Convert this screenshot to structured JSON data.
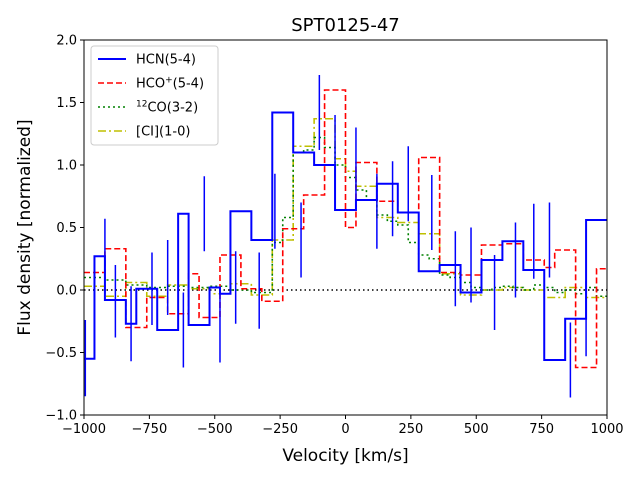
{
  "chart_data": {
    "type": "line",
    "drawstyle": "steps",
    "title": "SPT0125-47",
    "xlabel": "Velocity [km/s]",
    "ylabel": "Flux density [normalized]",
    "xlim": [
      -1000,
      1000
    ],
    "ylim": [
      -1.0,
      2.0
    ],
    "xticks": [
      -1000,
      -750,
      -500,
      -250,
      0,
      250,
      500,
      750,
      1000
    ],
    "xtick_labels": [
      "−1000",
      "−750",
      "−500",
      "−250",
      "0",
      "250",
      "500",
      "750",
      "1000"
    ],
    "yticks": [
      -1.0,
      -0.5,
      0.0,
      0.5,
      1.0,
      1.5,
      2.0
    ],
    "ytick_labels": [
      "−1.0",
      "−0.5",
      "0.0",
      "0.5",
      "1.0",
      "1.5",
      "2.0"
    ],
    "zero_line": 0,
    "grid": false,
    "legend_position": "top-left",
    "series": [
      {
        "name": "HCN(5-4)",
        "label_main": "HCN(5-4)",
        "label_sup": "",
        "label_rest": "",
        "color": "#0000ff",
        "linestyle": "solid",
        "x": [
          -1000,
          -960,
          -920,
          -880,
          -840,
          -800,
          -760,
          -720,
          -680,
          -640,
          -600,
          -560,
          -520,
          -480,
          -440,
          -400,
          -360,
          -320,
          -280,
          -240,
          -200,
          -160,
          -120,
          -80,
          -40,
          0,
          40,
          80,
          120,
          160,
          200,
          240,
          280,
          320,
          360,
          400,
          440,
          480,
          520,
          560,
          600,
          640,
          680,
          720,
          760,
          800,
          840,
          880,
          920,
          960,
          1000
        ],
        "y": [
          -0.55,
          0.27,
          -0.08,
          -0.08,
          -0.27,
          0.01,
          0.01,
          -0.32,
          -0.32,
          0.61,
          -0.28,
          -0.28,
          0.02,
          -0.03,
          0.63,
          0.63,
          0.4,
          0.4,
          1.42,
          1.42,
          1.1,
          1.1,
          1.0,
          1.0,
          0.64,
          0.64,
          0.72,
          0.72,
          0.85,
          0.85,
          0.62,
          0.62,
          0.15,
          0.15,
          0.2,
          0.2,
          -0.02,
          -0.02,
          0.24,
          0.24,
          0.39,
          0.39,
          0.16,
          0.16,
          -0.56,
          -0.56,
          -0.23,
          -0.23,
          0.56,
          0.56,
          0.56
        ],
        "errors": [
          {
            "x": -995,
            "low": -0.85,
            "high": -0.24
          },
          {
            "x": -920,
            "low": -0.02,
            "high": 0.57
          },
          {
            "x": -880,
            "low": -0.38,
            "high": 0.2
          },
          {
            "x": -820,
            "low": -0.57,
            "high": 0.03
          },
          {
            "x": -740,
            "low": -0.28,
            "high": 0.3
          },
          {
            "x": -680,
            "low": -0.2,
            "high": 0.4
          },
          {
            "x": -620,
            "low": -0.62,
            "high": -0.02
          },
          {
            "x": -540,
            "low": 0.31,
            "high": 0.91
          },
          {
            "x": -480,
            "low": -0.58,
            "high": 0.02
          },
          {
            "x": -420,
            "low": -0.27,
            "high": 0.31
          },
          {
            "x": -330,
            "low": -0.31,
            "high": 0.3
          },
          {
            "x": -270,
            "low": 0.33,
            "high": 0.93
          },
          {
            "x": -170,
            "low": 0.1,
            "high": 0.7
          },
          {
            "x": -100,
            "low": 1.12,
            "high": 1.72
          },
          {
            "x": -40,
            "low": 0.8,
            "high": 1.4
          },
          {
            "x": 40,
            "low": 0.7,
            "high": 1.3
          },
          {
            "x": 120,
            "low": 0.33,
            "high": 0.93
          },
          {
            "x": 180,
            "low": 0.43,
            "high": 1.03
          },
          {
            "x": 240,
            "low": 0.55,
            "high": 1.15
          },
          {
            "x": 330,
            "low": 0.32,
            "high": 0.92
          },
          {
            "x": 420,
            "low": -0.13,
            "high": 0.47
          },
          {
            "x": 480,
            "low": -0.1,
            "high": 0.5
          },
          {
            "x": 570,
            "low": -0.32,
            "high": 0.28
          },
          {
            "x": 650,
            "low": -0.06,
            "high": 0.54
          },
          {
            "x": 720,
            "low": 0.09,
            "high": 0.69
          },
          {
            "x": 780,
            "low": 0.1,
            "high": 0.7
          },
          {
            "x": 860,
            "low": -0.86,
            "high": -0.26
          },
          {
            "x": 920,
            "low": -0.53,
            "high": 0.07
          }
        ]
      },
      {
        "name": "HCO+(5-4)",
        "label_main": "HCO",
        "label_sup": "+",
        "label_rest": "(5-4)",
        "color": "#ff0000",
        "linestyle": "dashed",
        "x": [
          -1000,
          -960,
          -920,
          -880,
          -840,
          -800,
          -760,
          -720,
          -680,
          -640,
          -600,
          -560,
          -520,
          -480,
          -440,
          -400,
          -360,
          -320,
          -280,
          -240,
          -200,
          -160,
          -120,
          -80,
          -40,
          0,
          40,
          80,
          120,
          160,
          200,
          240,
          280,
          320,
          360,
          400,
          440,
          480,
          520,
          560,
          600,
          640,
          680,
          720,
          760,
          800,
          840,
          880,
          920,
          960,
          1000
        ],
        "y": [
          0.14,
          0.14,
          0.33,
          0.33,
          -0.3,
          -0.3,
          -0.06,
          -0.06,
          -0.19,
          -0.19,
          0.13,
          -0.22,
          -0.22,
          0.28,
          0.28,
          0.01,
          0.01,
          -0.09,
          -0.09,
          0.49,
          0.49,
          0.76,
          0.76,
          1.6,
          1.6,
          0.5,
          1.02,
          1.02,
          0.71,
          0.71,
          0.62,
          0.62,
          1.06,
          1.06,
          0.14,
          0.14,
          0.12,
          0.12,
          0.36,
          0.36,
          0.37,
          0.37,
          0.24,
          0.24,
          0.18,
          0.32,
          0.32,
          -0.62,
          -0.62,
          0.17,
          0.17
        ],
        "errors": []
      },
      {
        "name": "12CO(3-2)",
        "label_main": "",
        "label_sup": "12",
        "label_rest": "CO(3-2)",
        "color": "#008000",
        "linestyle": "dotted",
        "x": [
          -1000,
          -960,
          -920,
          -880,
          -840,
          -800,
          -760,
          -720,
          -680,
          -640,
          -600,
          -560,
          -520,
          -480,
          -440,
          -400,
          -360,
          -320,
          -280,
          -240,
          -200,
          -160,
          -120,
          -80,
          -40,
          0,
          40,
          80,
          120,
          160,
          200,
          240,
          280,
          320,
          360,
          400,
          440,
          480,
          520,
          560,
          600,
          640,
          680,
          720,
          760,
          800,
          840,
          880,
          920,
          960,
          1000
        ],
        "y": [
          0.1,
          0.1,
          0.08,
          0.08,
          0.04,
          0.04,
          0.02,
          0.02,
          0.03,
          0.03,
          0.02,
          0.02,
          0.03,
          0.03,
          0.0,
          0.0,
          -0.02,
          -0.02,
          0.38,
          0.58,
          1.1,
          1.12,
          1.22,
          1.14,
          1.0,
          0.9,
          0.8,
          0.72,
          0.6,
          0.55,
          0.52,
          0.38,
          0.28,
          0.25,
          0.12,
          0.1,
          0.06,
          0.02,
          0.0,
          0.02,
          0.03,
          0.02,
          0.0,
          0.04,
          0.02,
          -0.02,
          0.0,
          -0.03,
          0.02,
          -0.05,
          -0.05
        ],
        "errors": []
      },
      {
        "name": "[CI](1-0)",
        "label_main": "[CI](1-0)",
        "label_sup": "",
        "label_rest": "",
        "color": "#bfbf00",
        "linestyle": "dashdot",
        "x": [
          -1000,
          -960,
          -920,
          -880,
          -840,
          -800,
          -760,
          -720,
          -680,
          -640,
          -600,
          -560,
          -520,
          -480,
          -440,
          -400,
          -360,
          -320,
          -280,
          -240,
          -200,
          -160,
          -120,
          -80,
          -40,
          0,
          40,
          80,
          120,
          160,
          200,
          240,
          280,
          320,
          360,
          400,
          440,
          480,
          520,
          560,
          600,
          640,
          680,
          720,
          760,
          800,
          840,
          880,
          920,
          960,
          1000
        ],
        "y": [
          0.03,
          0.03,
          -0.05,
          -0.05,
          0.06,
          0.06,
          -0.05,
          -0.05,
          0.04,
          0.04,
          0.01,
          0.01,
          -0.03,
          -0.03,
          0.05,
          0.05,
          -0.04,
          -0.04,
          0.4,
          0.4,
          1.15,
          1.15,
          1.37,
          1.37,
          1.05,
          0.95,
          0.83,
          0.83,
          0.58,
          0.58,
          0.54,
          0.54,
          0.45,
          0.45,
          0.13,
          0.13,
          -0.04,
          -0.04,
          0.0,
          0.0,
          0.02,
          0.02,
          0.0,
          0.0,
          -0.06,
          -0.06,
          0.02,
          0.02,
          -0.06,
          -0.06,
          -0.06
        ],
        "errors": []
      }
    ]
  }
}
